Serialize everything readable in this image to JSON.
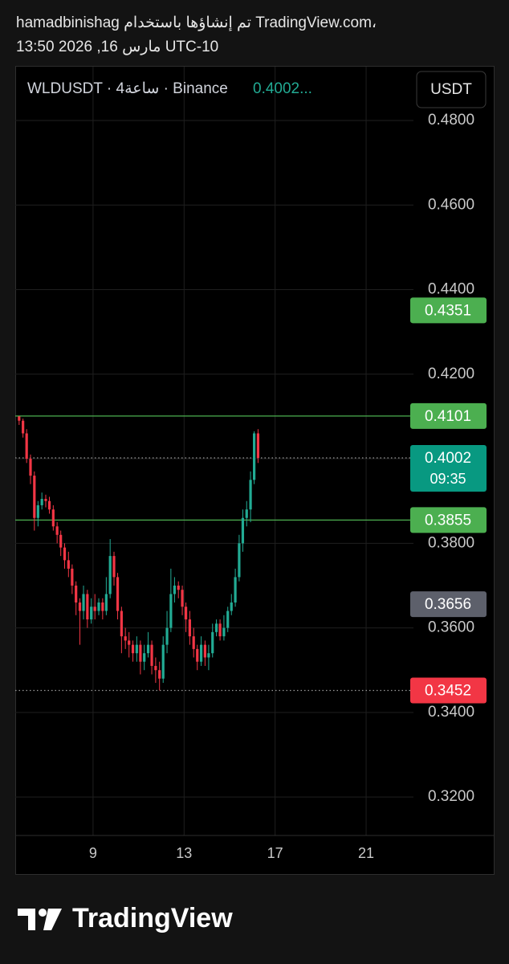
{
  "header": {
    "line1": "hamadbinishag تم إنشاؤها باستخدام TradingView.com،",
    "line2": "13:50 2026 ,16 مارس UTC-10"
  },
  "chart_data": {
    "type": "candlestick",
    "symbol": "WLDUSDT · 4ساعة · Binance",
    "last_price_text": "0.4002...",
    "currency_button": "USDT",
    "x": [
      5.75,
      5.92,
      6.08,
      6.25,
      6.42,
      6.58,
      6.75,
      6.92,
      7.08,
      7.25,
      7.42,
      7.58,
      7.75,
      7.92,
      8.08,
      8.25,
      8.42,
      8.58,
      8.75,
      8.92,
      9.08,
      9.25,
      9.42,
      9.58,
      9.75,
      9.92,
      10.08,
      10.25,
      10.42,
      10.58,
      10.75,
      10.92,
      11.08,
      11.25,
      11.42,
      11.58,
      11.75,
      11.92,
      12.08,
      12.25,
      12.42,
      12.58,
      12.75,
      12.92,
      13.08,
      13.25,
      13.42,
      13.58,
      13.75,
      13.92,
      14.08,
      14.25,
      14.42,
      14.58,
      14.75,
      14.92,
      15.08,
      15.25,
      15.42,
      15.58,
      15.75,
      15.92,
      16.08,
      16.25
    ],
    "open": [
      0.41,
      0.409,
      0.406,
      0.4,
      0.396,
      0.386,
      0.389,
      0.3905,
      0.39,
      0.388,
      0.384,
      0.382,
      0.379,
      0.376,
      0.374,
      0.37,
      0.366,
      0.364,
      0.368,
      0.362,
      0.365,
      0.364,
      0.366,
      0.364,
      0.368,
      0.377,
      0.372,
      0.364,
      0.358,
      0.357,
      0.356,
      0.354,
      0.356,
      0.352,
      0.354,
      0.356,
      0.351,
      0.35,
      0.348,
      0.356,
      0.36,
      0.368,
      0.37,
      0.369,
      0.365,
      0.362,
      0.358,
      0.355,
      0.352,
      0.356,
      0.353,
      0.354,
      0.359,
      0.361,
      0.358,
      0.36,
      0.364,
      0.366,
      0.372,
      0.38,
      0.386,
      0.388,
      0.395,
      0.406
    ],
    "high": [
      0.4101,
      0.4095,
      0.407,
      0.401,
      0.397,
      0.39,
      0.392,
      0.3915,
      0.391,
      0.389,
      0.385,
      0.383,
      0.38,
      0.378,
      0.375,
      0.371,
      0.367,
      0.37,
      0.369,
      0.367,
      0.368,
      0.367,
      0.367,
      0.372,
      0.381,
      0.378,
      0.373,
      0.365,
      0.36,
      0.359,
      0.357,
      0.358,
      0.357,
      0.356,
      0.359,
      0.357,
      0.353,
      0.352,
      0.358,
      0.364,
      0.374,
      0.372,
      0.371,
      0.37,
      0.366,
      0.364,
      0.36,
      0.356,
      0.358,
      0.357,
      0.356,
      0.361,
      0.362,
      0.362,
      0.363,
      0.365,
      0.368,
      0.374,
      0.382,
      0.388,
      0.39,
      0.397,
      0.4065,
      0.407
    ],
    "low": [
      0.408,
      0.405,
      0.399,
      0.394,
      0.383,
      0.384,
      0.388,
      0.3885,
      0.387,
      0.383,
      0.38,
      0.377,
      0.374,
      0.372,
      0.368,
      0.363,
      0.356,
      0.362,
      0.36,
      0.361,
      0.362,
      0.363,
      0.362,
      0.363,
      0.367,
      0.37,
      0.362,
      0.354,
      0.355,
      0.353,
      0.352,
      0.352,
      0.349,
      0.35,
      0.353,
      0.349,
      0.347,
      0.3452,
      0.347,
      0.354,
      0.359,
      0.366,
      0.367,
      0.363,
      0.359,
      0.356,
      0.353,
      0.35,
      0.351,
      0.351,
      0.35,
      0.353,
      0.358,
      0.357,
      0.357,
      0.359,
      0.363,
      0.365,
      0.371,
      0.378,
      0.384,
      0.385,
      0.394,
      0.399
    ],
    "close": [
      0.409,
      0.406,
      0.4,
      0.396,
      0.386,
      0.389,
      0.3905,
      0.39,
      0.388,
      0.384,
      0.382,
      0.379,
      0.376,
      0.374,
      0.37,
      0.366,
      0.364,
      0.368,
      0.362,
      0.365,
      0.364,
      0.366,
      0.364,
      0.368,
      0.377,
      0.372,
      0.364,
      0.358,
      0.357,
      0.356,
      0.354,
      0.356,
      0.352,
      0.354,
      0.356,
      0.351,
      0.35,
      0.348,
      0.356,
      0.36,
      0.368,
      0.37,
      0.369,
      0.365,
      0.362,
      0.358,
      0.355,
      0.352,
      0.356,
      0.353,
      0.354,
      0.359,
      0.361,
      0.358,
      0.36,
      0.364,
      0.366,
      0.372,
      0.38,
      0.386,
      0.388,
      0.395,
      0.406,
      0.4002
    ],
    "up_color": "#22ab94",
    "down_color": "#f23645",
    "xlim": [
      5.58,
      23.08
    ],
    "xticks": [
      9,
      13,
      17,
      21
    ],
    "ylim": [
      0.3109,
      0.4838
    ],
    "yticks": [
      {
        "value": 0.48,
        "label": "0.4800"
      },
      {
        "value": 0.46,
        "label": "0.4600"
      },
      {
        "value": 0.44,
        "label": "0.4400"
      },
      {
        "value": 0.42,
        "label": "0.4200"
      },
      {
        "value": 0.4,
        "label": "0.4000"
      },
      {
        "value": 0.38,
        "label": "0.3800"
      },
      {
        "value": 0.36,
        "label": "0.3600"
      },
      {
        "value": 0.34,
        "label": "0.3400"
      },
      {
        "value": 0.32,
        "label": "0.3200"
      }
    ],
    "grid": true,
    "price_lines": [
      {
        "value": 0.4351,
        "color": "#4caf50",
        "line": "none"
      },
      {
        "value": 0.4101,
        "color": "#4caf50",
        "line": "solid"
      },
      {
        "value": 0.4002,
        "color": "#089981",
        "line": "dotted",
        "countdown": "09:35"
      },
      {
        "value": 0.3855,
        "color": "#4caf50",
        "line": "solid"
      },
      {
        "value": 0.3656,
        "color": "#5d606b",
        "line": "none"
      },
      {
        "value": 0.3452,
        "color": "#f23645",
        "line": "dotted"
      }
    ]
  },
  "footer": {
    "brand": "TradingView"
  }
}
